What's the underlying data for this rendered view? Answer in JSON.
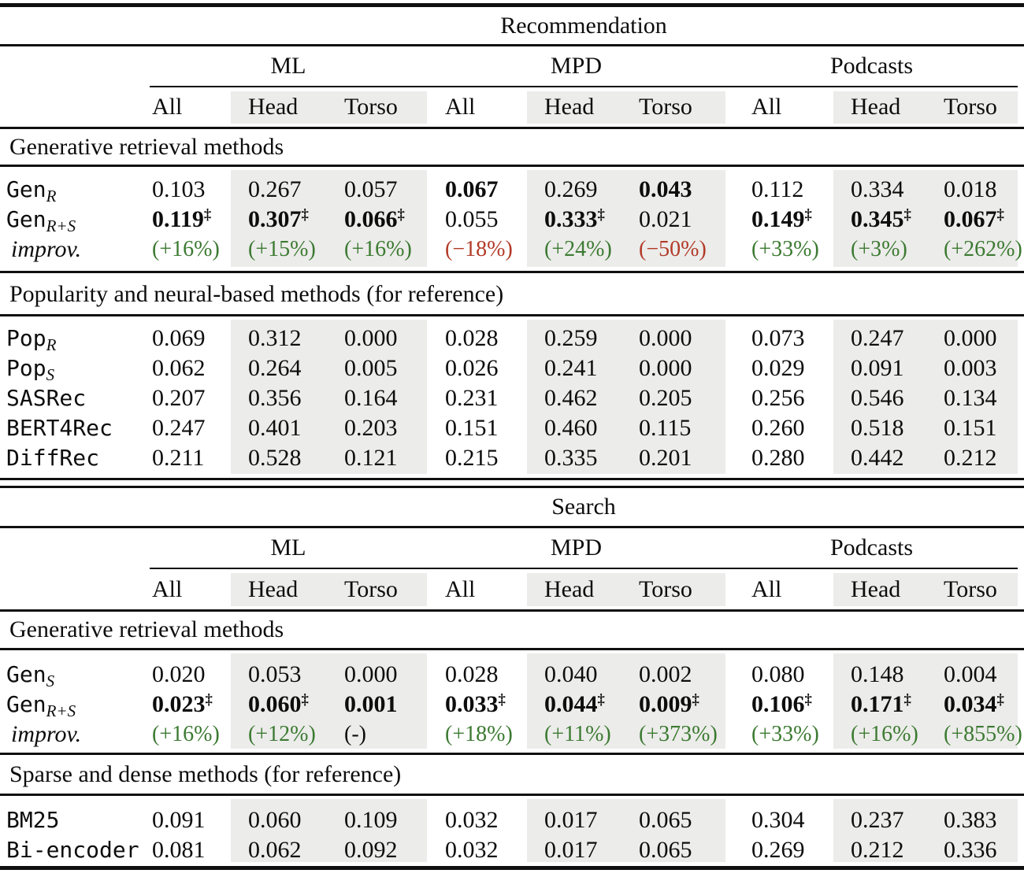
{
  "panels": [
    {
      "title": "Recommendation",
      "groups": [
        "ML",
        "MPD",
        "Podcasts"
      ],
      "subheaders": [
        "All",
        "Head",
        "Torso",
        "All",
        "Head",
        "Torso",
        "All",
        "Head",
        "Torso"
      ],
      "sections": [
        {
          "header": "Generative retrieval methods",
          "rows": [
            {
              "label": {
                "text": "Gen",
                "sub": "R"
              },
              "cells": [
                {
                  "t": "0.103"
                },
                {
                  "t": "0.267"
                },
                {
                  "t": "0.057"
                },
                {
                  "t": "0.067",
                  "style": "bold"
                },
                {
                  "t": "0.269"
                },
                {
                  "t": "0.043",
                  "style": "bold"
                },
                {
                  "t": "0.112"
                },
                {
                  "t": "0.334"
                },
                {
                  "t": "0.018"
                }
              ]
            },
            {
              "label": {
                "text": "Gen",
                "sub": "R+S"
              },
              "cells": [
                {
                  "t": "0.119",
                  "sup": "‡",
                  "style": "bold"
                },
                {
                  "t": "0.307",
                  "sup": "‡",
                  "style": "bold"
                },
                {
                  "t": "0.066",
                  "sup": "‡",
                  "style": "bold"
                },
                {
                  "t": "0.055"
                },
                {
                  "t": "0.333",
                  "sup": "‡",
                  "style": "bold"
                },
                {
                  "t": "0.021"
                },
                {
                  "t": "0.149",
                  "sup": "‡",
                  "style": "bold"
                },
                {
                  "t": "0.345",
                  "sup": "‡",
                  "style": "bold"
                },
                {
                  "t": "0.067",
                  "sup": "‡",
                  "style": "bold"
                }
              ]
            },
            {
              "label": {
                "text": "improv.",
                "italic": true
              },
              "cells": [
                {
                  "t": "(+16%)",
                  "style": "pos"
                },
                {
                  "t": "(+15%)",
                  "style": "pos"
                },
                {
                  "t": "(+16%)",
                  "style": "pos"
                },
                {
                  "t": "(−18%)",
                  "style": "neg"
                },
                {
                  "t": "(+24%)",
                  "style": "pos"
                },
                {
                  "t": "(−50%)",
                  "style": "neg"
                },
                {
                  "t": "(+33%)",
                  "style": "pos"
                },
                {
                  "t": "(+3%)",
                  "style": "pos"
                },
                {
                  "t": "(+262%)",
                  "style": "pos"
                }
              ]
            }
          ]
        },
        {
          "header": "Popularity and neural-based methods (for reference)",
          "rows": [
            {
              "label": {
                "text": "Pop",
                "sub": "R"
              },
              "cells": [
                {
                  "t": "0.069"
                },
                {
                  "t": "0.312"
                },
                {
                  "t": "0.000"
                },
                {
                  "t": "0.028"
                },
                {
                  "t": "0.259"
                },
                {
                  "t": "0.000"
                },
                {
                  "t": "0.073"
                },
                {
                  "t": "0.247"
                },
                {
                  "t": "0.000"
                }
              ]
            },
            {
              "label": {
                "text": "Pop",
                "sub": "S"
              },
              "cells": [
                {
                  "t": "0.062"
                },
                {
                  "t": "0.264"
                },
                {
                  "t": "0.005"
                },
                {
                  "t": "0.026"
                },
                {
                  "t": "0.241"
                },
                {
                  "t": "0.000"
                },
                {
                  "t": "0.029"
                },
                {
                  "t": "0.091"
                },
                {
                  "t": "0.003"
                }
              ]
            },
            {
              "label": {
                "text": "SASRec"
              },
              "cells": [
                {
                  "t": "0.207"
                },
                {
                  "t": "0.356"
                },
                {
                  "t": "0.164"
                },
                {
                  "t": "0.231"
                },
                {
                  "t": "0.462"
                },
                {
                  "t": "0.205"
                },
                {
                  "t": "0.256"
                },
                {
                  "t": "0.546"
                },
                {
                  "t": "0.134"
                }
              ]
            },
            {
              "label": {
                "text": "BERT4Rec"
              },
              "cells": [
                {
                  "t": "0.247"
                },
                {
                  "t": "0.401"
                },
                {
                  "t": "0.203"
                },
                {
                  "t": "0.151"
                },
                {
                  "t": "0.460"
                },
                {
                  "t": "0.115"
                },
                {
                  "t": "0.260"
                },
                {
                  "t": "0.518"
                },
                {
                  "t": "0.151"
                }
              ]
            },
            {
              "label": {
                "text": "DiffRec"
              },
              "cells": [
                {
                  "t": "0.211"
                },
                {
                  "t": "0.528"
                },
                {
                  "t": "0.121"
                },
                {
                  "t": "0.215"
                },
                {
                  "t": "0.335"
                },
                {
                  "t": "0.201"
                },
                {
                  "t": "0.280"
                },
                {
                  "t": "0.442"
                },
                {
                  "t": "0.212"
                }
              ]
            }
          ]
        }
      ]
    },
    {
      "title": "Search",
      "groups": [
        "ML",
        "MPD",
        "Podcasts"
      ],
      "subheaders": [
        "All",
        "Head",
        "Torso",
        "All",
        "Head",
        "Torso",
        "All",
        "Head",
        "Torso"
      ],
      "sections": [
        {
          "header": "Generative retrieval methods",
          "rows": [
            {
              "label": {
                "text": "Gen",
                "sub": "S"
              },
              "cells": [
                {
                  "t": "0.020"
                },
                {
                  "t": "0.053"
                },
                {
                  "t": "0.000"
                },
                {
                  "t": "0.028"
                },
                {
                  "t": "0.040"
                },
                {
                  "t": "0.002"
                },
                {
                  "t": "0.080"
                },
                {
                  "t": "0.148"
                },
                {
                  "t": "0.004"
                }
              ]
            },
            {
              "label": {
                "text": "Gen",
                "sub": "R+S"
              },
              "cells": [
                {
                  "t": "0.023",
                  "sup": "‡",
                  "style": "bold"
                },
                {
                  "t": "0.060",
                  "sup": "‡",
                  "style": "bold"
                },
                {
                  "t": "0.001",
                  "style": "bold"
                },
                {
                  "t": "0.033",
                  "sup": "‡",
                  "style": "bold"
                },
                {
                  "t": "0.044",
                  "sup": "‡",
                  "style": "bold"
                },
                {
                  "t": "0.009",
                  "sup": "‡",
                  "style": "bold"
                },
                {
                  "t": "0.106",
                  "sup": "‡",
                  "style": "bold"
                },
                {
                  "t": "0.171",
                  "sup": "‡",
                  "style": "bold"
                },
                {
                  "t": "0.034",
                  "sup": "‡",
                  "style": "bold"
                }
              ]
            },
            {
              "label": {
                "text": "improv.",
                "italic": true
              },
              "cells": [
                {
                  "t": "(+16%)",
                  "style": "pos"
                },
                {
                  "t": "(+12%)",
                  "style": "pos"
                },
                {
                  "t": "(-)",
                  "style": "pct"
                },
                {
                  "t": "(+18%)",
                  "style": "pos"
                },
                {
                  "t": "(+11%)",
                  "style": "pos"
                },
                {
                  "t": "(+373%)",
                  "style": "pos"
                },
                {
                  "t": "(+33%)",
                  "style": "pos"
                },
                {
                  "t": "(+16%)",
                  "style": "pos"
                },
                {
                  "t": "(+855%)",
                  "style": "pos"
                }
              ]
            }
          ]
        },
        {
          "header": "Sparse and dense methods (for reference)",
          "rows": [
            {
              "label": {
                "text": "BM25"
              },
              "cells": [
                {
                  "t": "0.091"
                },
                {
                  "t": "0.060"
                },
                {
                  "t": "0.109"
                },
                {
                  "t": "0.032"
                },
                {
                  "t": "0.017"
                },
                {
                  "t": "0.065"
                },
                {
                  "t": "0.304"
                },
                {
                  "t": "0.237"
                },
                {
                  "t": "0.383"
                }
              ]
            },
            {
              "label": {
                "text": "Bi-encoder"
              },
              "cells": [
                {
                  "t": "0.081"
                },
                {
                  "t": "0.062"
                },
                {
                  "t": "0.092"
                },
                {
                  "t": "0.032"
                },
                {
                  "t": "0.017"
                },
                {
                  "t": "0.065"
                },
                {
                  "t": "0.269"
                },
                {
                  "t": "0.212"
                },
                {
                  "t": "0.336"
                }
              ]
            }
          ]
        }
      ]
    }
  ],
  "colors": {
    "positive": "#3c7a32",
    "negative": "#b23a28",
    "band": "#ececea"
  }
}
